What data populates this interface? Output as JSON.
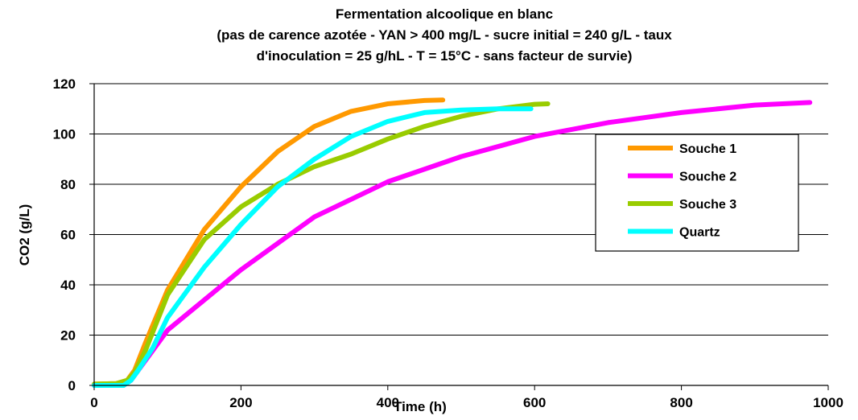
{
  "chart_data": {
    "type": "line",
    "title_lines": [
      "Fermentation alcoolique en blanc",
      "(pas de carence azotée - YAN > 400 mg/L - sucre initial = 240 g/L - taux",
      "d'inoculation = 25 g/hL - T = 15°C - sans facteur de survie)"
    ],
    "xlabel": "Time (h)",
    "ylabel": "CO2 (g/L)",
    "xlim": [
      0,
      1000
    ],
    "ylim": [
      0,
      120
    ],
    "x_ticks": [
      "0",
      "200",
      "400",
      "600",
      "800",
      "1000"
    ],
    "y_ticks": [
      "0",
      "20",
      "40",
      "60",
      "80",
      "100",
      "120"
    ],
    "grid": "horizontal",
    "legend_position": "right",
    "series": [
      {
        "name": "Souche 1",
        "color": "#FF9900",
        "x": [
          0,
          30,
          45,
          55,
          70,
          100,
          150,
          200,
          250,
          300,
          350,
          400,
          450,
          475
        ],
        "y": [
          0.5,
          0.7,
          2,
          6,
          17,
          38,
          62,
          79,
          93,
          103,
          109,
          112,
          113.3,
          113.5
        ]
      },
      {
        "name": "Souche 2",
        "color": "#FF00FF",
        "x": [
          0,
          40,
          50,
          60,
          80,
          100,
          150,
          200,
          300,
          400,
          500,
          600,
          700,
          800,
          900,
          975
        ],
        "y": [
          0,
          0,
          2,
          6,
          14,
          22,
          34,
          46,
          67,
          81,
          91,
          99,
          104.5,
          108.5,
          111.5,
          112.5
        ]
      },
      {
        "name": "Souche 3",
        "color": "#99CC00",
        "x": [
          0,
          30,
          45,
          55,
          70,
          100,
          150,
          200,
          250,
          300,
          350,
          400,
          450,
          500,
          550,
          600,
          618
        ],
        "y": [
          0.5,
          0.7,
          2,
          5,
          14,
          36,
          58,
          71,
          80,
          87,
          92,
          98,
          103,
          107,
          110,
          111.8,
          112
        ]
      },
      {
        "name": "Quartz",
        "color": "#00FFFF",
        "x": [
          0,
          40,
          50,
          60,
          80,
          100,
          150,
          200,
          250,
          300,
          350,
          400,
          450,
          500,
          550,
          595
        ],
        "y": [
          0,
          0,
          2,
          6,
          15,
          27,
          47,
          64,
          79,
          90,
          99,
          105,
          108.5,
          109.5,
          110,
          110
        ]
      }
    ]
  }
}
